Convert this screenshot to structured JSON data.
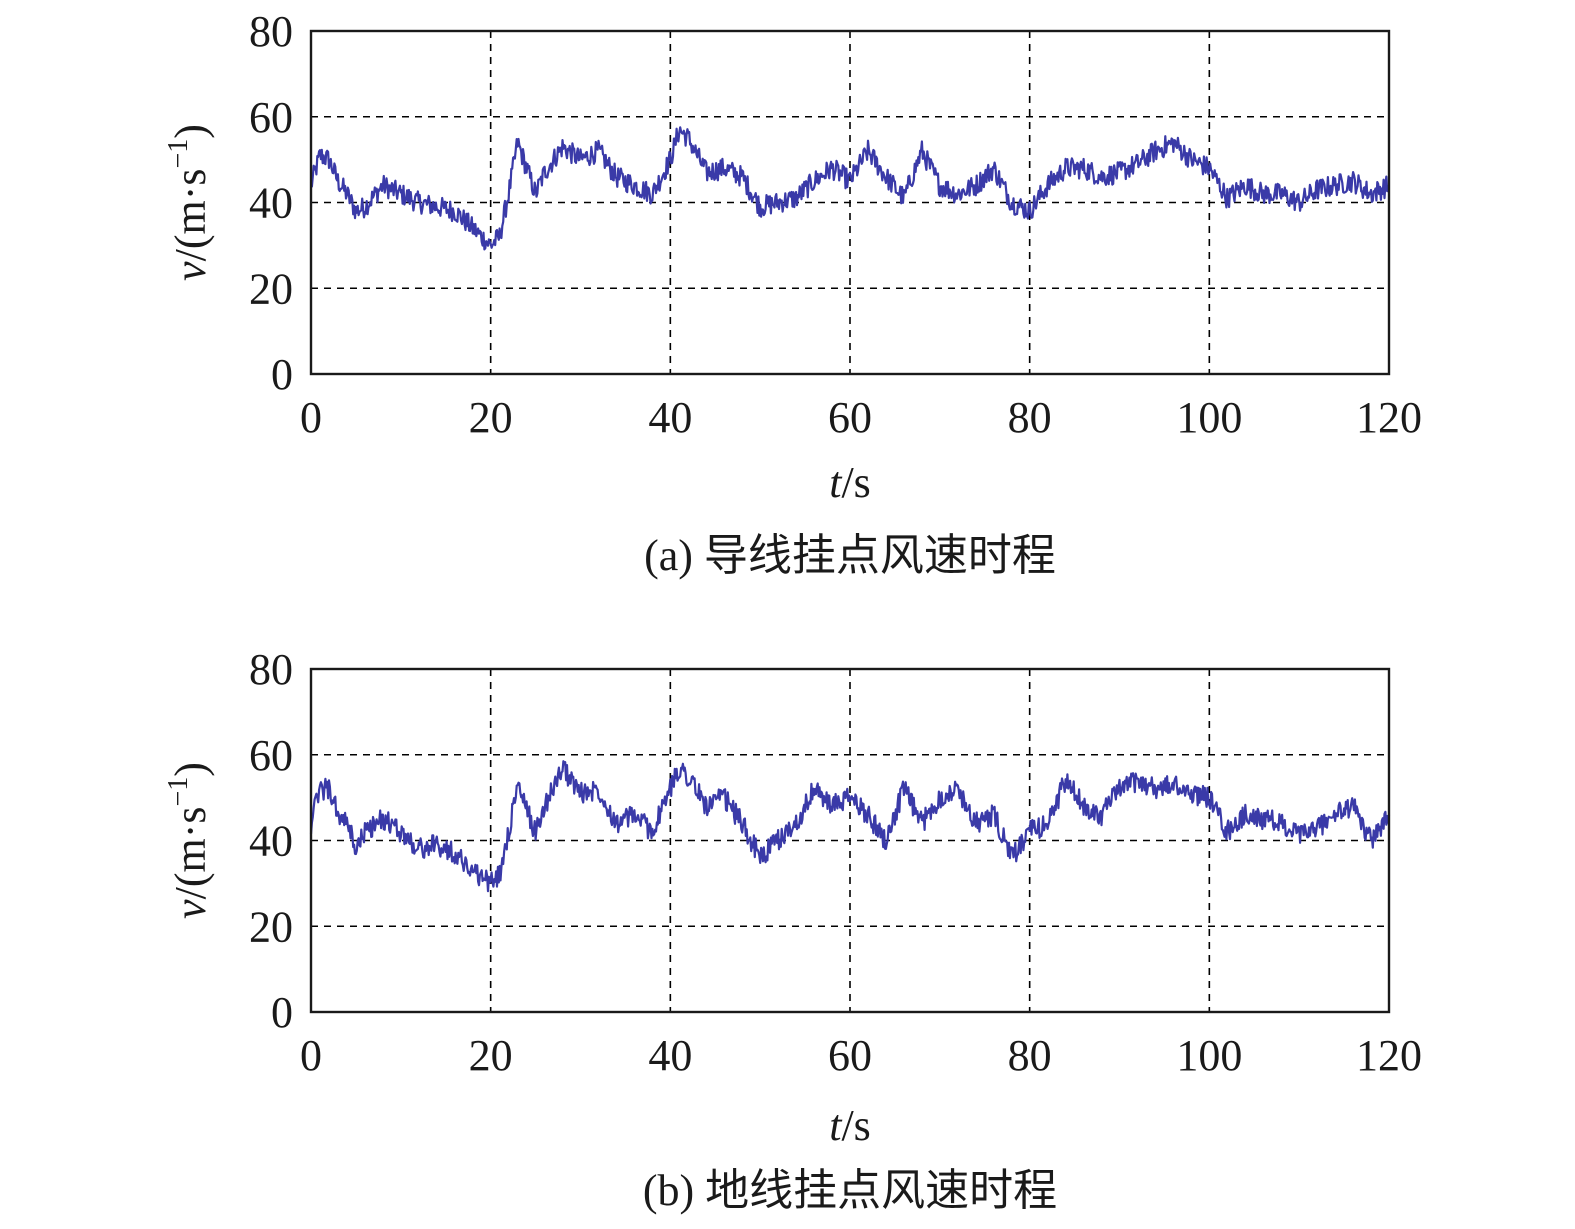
{
  "colors": {
    "series": "#3a3aa8",
    "grid": "#000000",
    "frame": "#1a1a1a"
  },
  "chart_data": [
    {
      "type": "line",
      "caption": "(a) 导线挂点风速时程",
      "xlabel_italic": "t",
      "xlabel_unit": "/s",
      "ylabel_italic": "v",
      "ylabel_unit": "/(m·s",
      "ylabel_exp": "−1",
      "ylabel_close": ")",
      "xlim": [
        0,
        120
      ],
      "ylim": [
        0,
        80
      ],
      "xticks": [
        "0",
        "20",
        "40",
        "60",
        "80",
        "100",
        "120"
      ],
      "yticks": [
        "0",
        "20",
        "40",
        "60",
        "80"
      ],
      "grid": true,
      "series": [
        {
          "x": [
            0,
            1,
            2,
            3,
            4,
            5,
            6,
            8,
            10,
            12,
            14,
            16,
            18,
            20,
            21,
            22,
            23,
            24,
            25,
            26,
            28,
            30,
            32,
            34,
            36,
            38,
            40,
            41,
            42,
            44,
            46,
            48,
            50,
            52,
            54,
            56,
            58,
            60,
            62,
            64,
            66,
            68,
            70,
            72,
            74,
            76,
            78,
            80,
            82,
            84,
            86,
            88,
            90,
            92,
            94,
            96,
            98,
            100,
            102,
            104,
            106,
            108,
            110,
            112,
            114,
            116,
            118,
            120
          ],
          "y": [
            44,
            51,
            50,
            45,
            42,
            38,
            39,
            44,
            42,
            40,
            39,
            38,
            34,
            30,
            32,
            42,
            54,
            48,
            42,
            47,
            53,
            50,
            52,
            46,
            44,
            42,
            50,
            57,
            55,
            47,
            48,
            46,
            39,
            40,
            41,
            45,
            48,
            45,
            52,
            46,
            41,
            52,
            44,
            42,
            44,
            48,
            40,
            38,
            44,
            48,
            48,
            46,
            47,
            49,
            52,
            54,
            50,
            48,
            41,
            44,
            42,
            42,
            40,
            43,
            44,
            45,
            42,
            44
          ]
        }
      ]
    },
    {
      "type": "line",
      "caption": "(b) 地线挂点风速时程",
      "xlabel_italic": "t",
      "xlabel_unit": "/s",
      "ylabel_italic": "v",
      "ylabel_unit": "/(m·s",
      "ylabel_exp": "−1",
      "ylabel_close": ")",
      "xlim": [
        0,
        120
      ],
      "ylim": [
        0,
        80
      ],
      "xticks": [
        "0",
        "20",
        "40",
        "60",
        "80",
        "100",
        "120"
      ],
      "yticks": [
        "0",
        "20",
        "40",
        "60",
        "80"
      ],
      "grid": true,
      "series": [
        {
          "x": [
            0,
            1,
            2,
            3,
            4,
            5,
            6,
            8,
            10,
            12,
            14,
            16,
            18,
            20,
            21,
            22,
            23,
            24,
            25,
            26,
            28,
            30,
            32,
            34,
            36,
            38,
            40,
            41,
            42,
            44,
            46,
            48,
            50,
            52,
            54,
            56,
            58,
            60,
            62,
            64,
            66,
            68,
            70,
            72,
            74,
            76,
            78,
            80,
            82,
            84,
            86,
            88,
            90,
            92,
            94,
            96,
            98,
            100,
            102,
            104,
            106,
            108,
            110,
            112,
            114,
            116,
            118,
            120
          ],
          "y": [
            44,
            52,
            52,
            46,
            44,
            38,
            42,
            45,
            42,
            38,
            39,
            37,
            33,
            30,
            32,
            42,
            53,
            47,
            42,
            48,
            57,
            51,
            52,
            44,
            46,
            42,
            52,
            57,
            55,
            48,
            50,
            44,
            36,
            40,
            44,
            52,
            48,
            50,
            46,
            40,
            52,
            44,
            50,
            52,
            44,
            46,
            36,
            42,
            44,
            54,
            48,
            46,
            52,
            54,
            52,
            53,
            51,
            50,
            42,
            46,
            45,
            44,
            41,
            43,
            46,
            48,
            40,
            46
          ]
        }
      ]
    }
  ]
}
